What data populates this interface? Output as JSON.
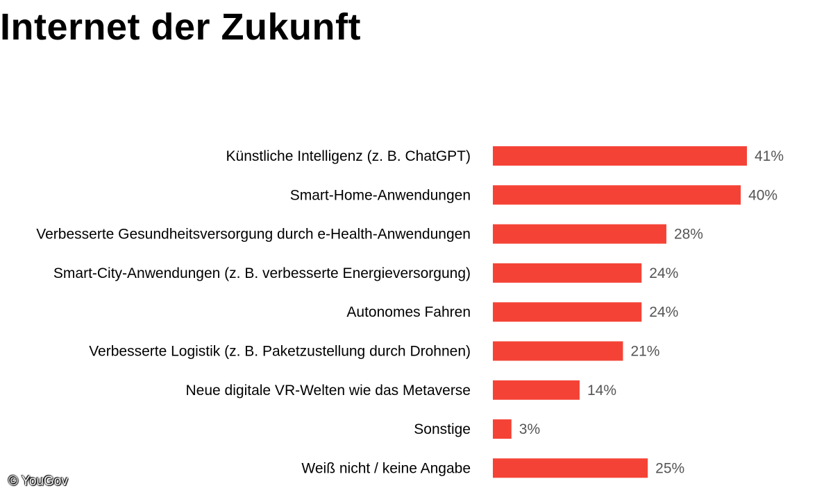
{
  "title": "Internet der Zukunft",
  "copyright": "© YouGov",
  "chart_data": {
    "type": "bar",
    "orientation": "horizontal",
    "categories": [
      "Künstliche Intelligenz (z. B. ChatGPT)",
      "Smart-Home-Anwendungen",
      "Verbesserte Gesundheitsversorgung durch e-Health-Anwendungen",
      "Smart-City-Anwendungen (z. B. verbesserte Energieversorgung)",
      "Autonomes Fahren",
      "Verbesserte Logistik (z. B. Paketzustellung durch Drohnen)",
      "Neue digitale VR-Welten wie das Metaverse",
      "Sonstige",
      "Weiß nicht / keine Angabe"
    ],
    "values": [
      41,
      40,
      28,
      24,
      24,
      21,
      14,
      3,
      25
    ],
    "value_labels": [
      "41%",
      "40%",
      "28%",
      "24%",
      "24%",
      "21%",
      "14%",
      "3%",
      "25%"
    ],
    "unit": "%",
    "bar_color": "#f44336",
    "label_color": "#000000",
    "value_label_color": "#555555",
    "grid": false,
    "legend": "none"
  }
}
